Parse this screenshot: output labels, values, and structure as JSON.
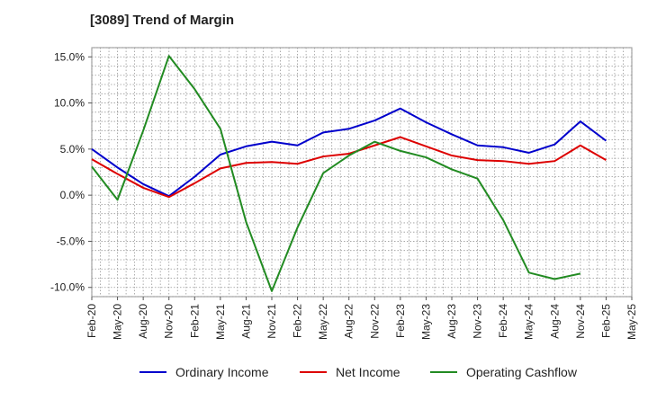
{
  "chart_data": {
    "type": "line",
    "title": "[3089]  Trend of Margin",
    "xlabel": "",
    "ylabel": "",
    "categories": [
      "Feb-20",
      "May-20",
      "Aug-20",
      "Nov-20",
      "Feb-21",
      "May-21",
      "Aug-21",
      "Nov-21",
      "Feb-22",
      "May-22",
      "Aug-22",
      "Nov-22",
      "Feb-23",
      "May-23",
      "Aug-23",
      "Nov-23",
      "Feb-24",
      "May-24",
      "Aug-24",
      "Nov-24",
      "Feb-25",
      "May-25"
    ],
    "ylim": [
      -11,
      16
    ],
    "yticks": [
      -10,
      -5,
      0,
      5,
      10,
      15
    ],
    "ytick_labels": [
      "-10.0%",
      "-5.0%",
      "0.0%",
      "5.0%",
      "10.0%",
      "15.0%"
    ],
    "grid": true,
    "legend_position": "bottom",
    "series": [
      {
        "name": "Ordinary Income",
        "color": "#0000cc",
        "values": [
          5.0,
          3.0,
          1.2,
          -0.1,
          2.0,
          4.4,
          5.3,
          5.8,
          5.4,
          6.8,
          7.2,
          8.1,
          9.4,
          7.9,
          6.6,
          5.4,
          5.2,
          4.6,
          5.5,
          8.0,
          5.9,
          null
        ]
      },
      {
        "name": "Net Income",
        "color": "#dd0000",
        "values": [
          3.9,
          2.3,
          0.8,
          -0.2,
          1.3,
          2.9,
          3.5,
          3.6,
          3.4,
          4.2,
          4.5,
          5.4,
          6.3,
          5.3,
          4.3,
          3.8,
          3.7,
          3.4,
          3.7,
          5.4,
          3.8,
          null
        ]
      },
      {
        "name": "Operating Cashflow",
        "color": "#228b22",
        "values": [
          3.1,
          -0.5,
          7.0,
          15.1,
          11.5,
          7.2,
          -2.9,
          -10.4,
          -3.5,
          2.4,
          4.3,
          5.8,
          4.8,
          4.1,
          2.8,
          1.8,
          -2.7,
          -8.4,
          -9.1,
          -8.5,
          null,
          null
        ]
      }
    ]
  }
}
